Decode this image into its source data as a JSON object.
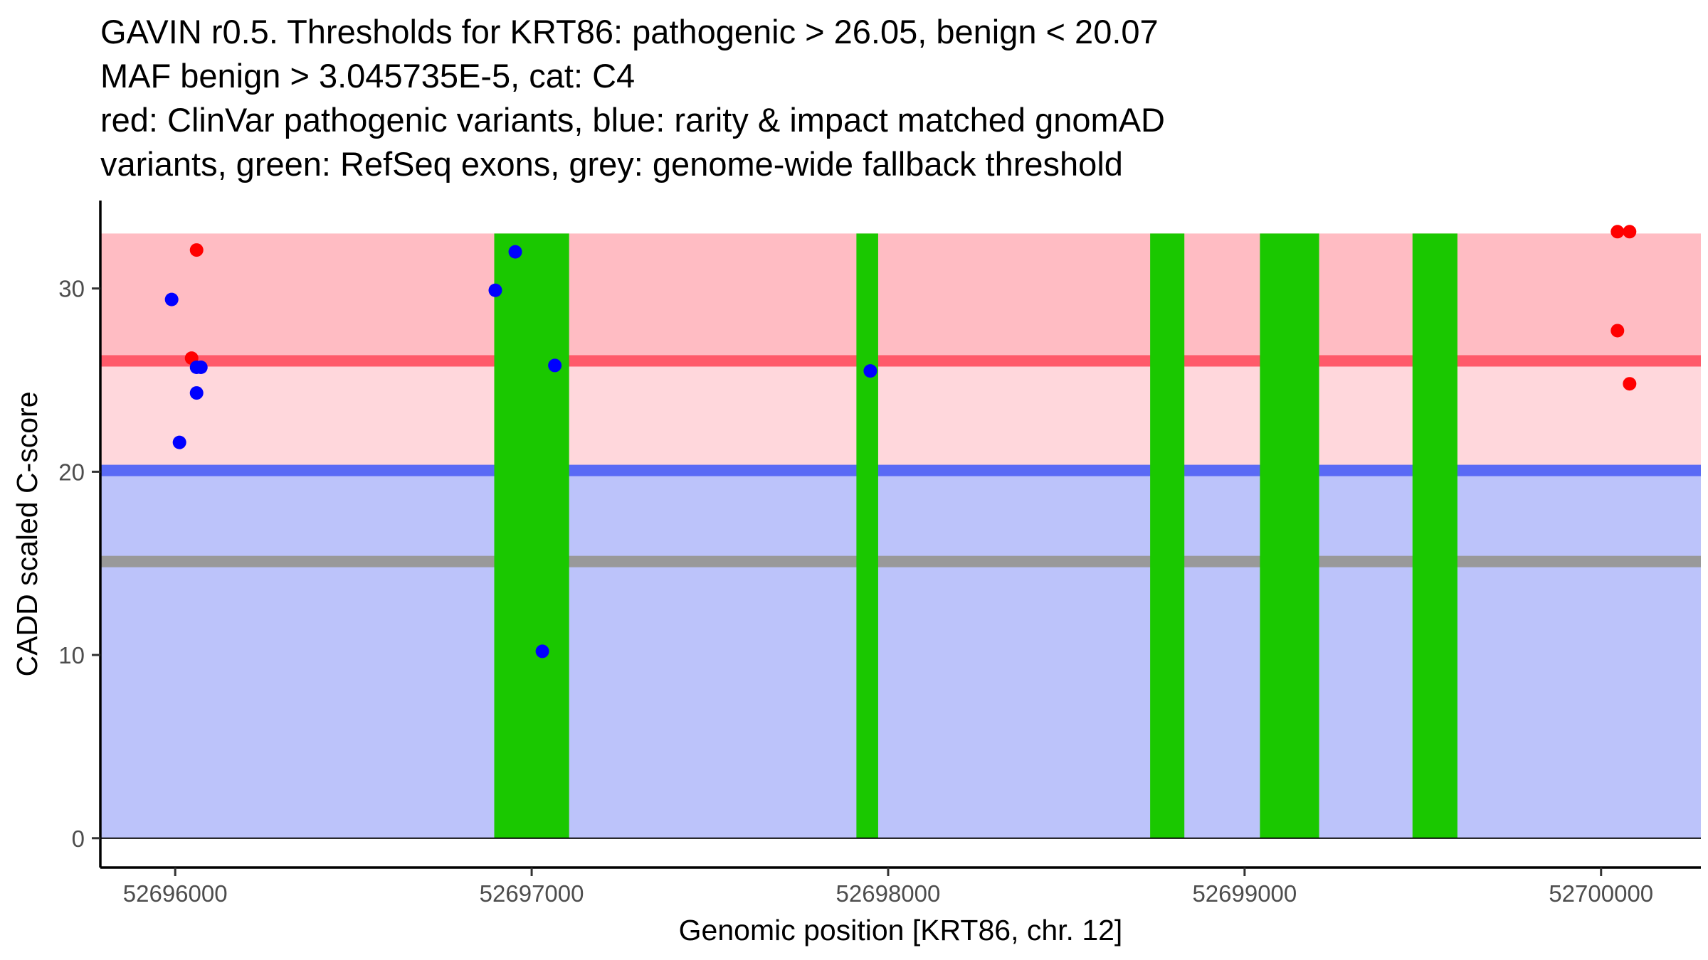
{
  "chart_data": {
    "type": "scatter",
    "title_lines": [
      "GAVIN r0.5. Thresholds for KRT86: pathogenic > 26.05, benign < 20.07",
      "MAF benign > 3.045735E-5, cat: C4",
      "red: ClinVar pathogenic variants, blue: rarity & impact matched gnomAD",
      "variants, green: RefSeq exons, grey: genome-wide fallback threshold"
    ],
    "xlabel": "Genomic position [KRT86, chr. 12]",
    "ylabel": "CADD scaled C-score",
    "xlim": [
      52695790,
      52700280
    ],
    "ylim": [
      -1.6,
      34.8
    ],
    "x_ticks": [
      52696000,
      52697000,
      52698000,
      52699000,
      52700000
    ],
    "y_ticks": [
      0,
      10,
      20,
      30
    ],
    "grid": false,
    "thresholds": {
      "pathogenic": 26.05,
      "benign": 20.07,
      "fallback": 15.1,
      "band_top": 33.0
    },
    "bands": [
      {
        "name": "pathogenic-zone",
        "from": 26.05,
        "to": 33.0,
        "color": "#ffbcc3"
      },
      {
        "name": "uncertain-zone",
        "from": 20.07,
        "to": 26.05,
        "color": "#ffd7dc"
      },
      {
        "name": "benign-zone",
        "from": 0,
        "to": 20.07,
        "color": "#bcc3fa"
      }
    ],
    "lines": [
      {
        "name": "pathogenic-threshold-line",
        "y": 26.05,
        "color": "#ff5a6a"
      },
      {
        "name": "benign-threshold-line",
        "y": 20.07,
        "color": "#5a6af5"
      },
      {
        "name": "fallback-threshold-line",
        "y": 15.1,
        "color": "#999999"
      }
    ],
    "exons": [
      {
        "start": 52696895,
        "end": 52697105
      },
      {
        "start": 52697911,
        "end": 52697972
      },
      {
        "start": 52698735,
        "end": 52698831
      },
      {
        "start": 52699043,
        "end": 52699209
      },
      {
        "start": 52699471,
        "end": 52699597
      }
    ],
    "exon_color": "#1ac800",
    "series": [
      {
        "name": "ClinVar pathogenic variants",
        "color": "#ff0000",
        "points": [
          {
            "x": 52696060,
            "y": 32.1
          },
          {
            "x": 52696046,
            "y": 26.2
          },
          {
            "x": 52700046,
            "y": 33.1
          },
          {
            "x": 52700080,
            "y": 33.1
          },
          {
            "x": 52700046,
            "y": 27.7
          },
          {
            "x": 52700080,
            "y": 24.8
          }
        ]
      },
      {
        "name": "rarity & impact matched gnomAD variants",
        "color": "#0000ff",
        "points": [
          {
            "x": 52695990,
            "y": 29.4
          },
          {
            "x": 52696012,
            "y": 21.6
          },
          {
            "x": 52696060,
            "y": 25.7
          },
          {
            "x": 52696072,
            "y": 25.7
          },
          {
            "x": 52696060,
            "y": 24.3
          },
          {
            "x": 52696898,
            "y": 29.9
          },
          {
            "x": 52696954,
            "y": 32.0
          },
          {
            "x": 52697065,
            "y": 25.8
          },
          {
            "x": 52697030,
            "y": 10.2
          },
          {
            "x": 52697950,
            "y": 25.5
          }
        ]
      }
    ]
  }
}
